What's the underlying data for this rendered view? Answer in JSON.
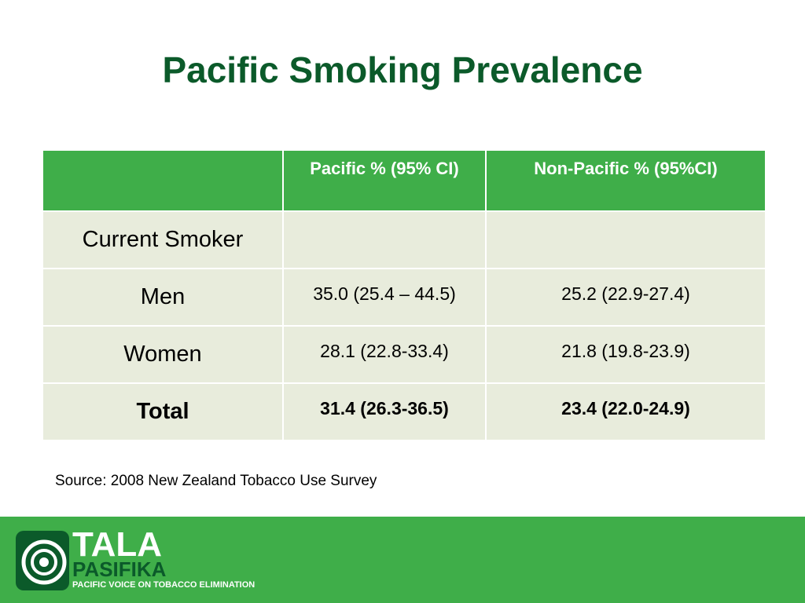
{
  "header": {
    "title": "Pacific Smoking Prevalence"
  },
  "table": {
    "columns": [
      "Pacific % (95% CI)",
      "Non-Pacific % (95%CI)"
    ],
    "section": "Current Smoker",
    "rows": [
      {
        "label": "Men",
        "values": [
          "35.0 (25.4 – 44.5)",
          "25.2 (22.9-27.4)"
        ]
      },
      {
        "label": "Women",
        "values": [
          "28.1 (22.8-33.4)",
          "21.8 (19.8-23.9)"
        ]
      },
      {
        "label": "Total",
        "values": [
          "31.4 (26.3-36.5)",
          "23.4 (22.0-24.9)"
        ]
      }
    ]
  },
  "source": "Source: 2008 New Zealand Tobacco Use Survey",
  "footer": {
    "logo_word1": "TALA",
    "logo_word2": "PASIFIKA",
    "logo_tagline": "PACIFIC VOICE ON TOBACCO ELIMINATION"
  }
}
